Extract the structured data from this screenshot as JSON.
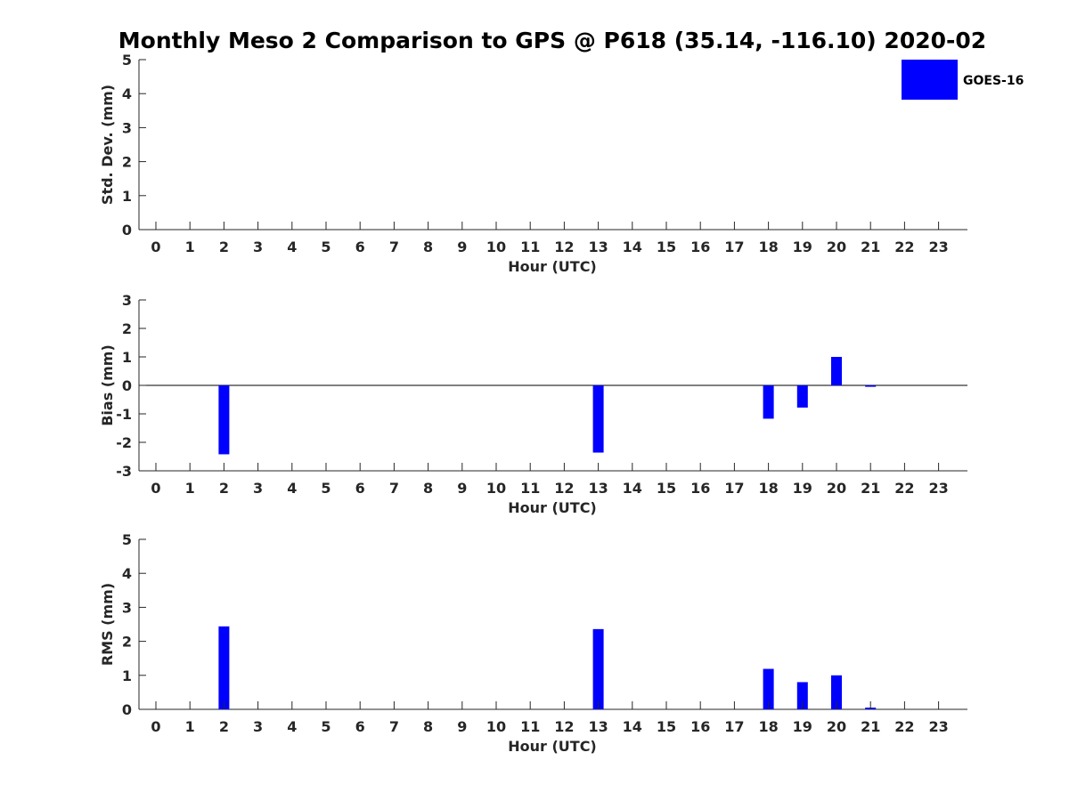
{
  "figure_title": "Monthly Meso 2 Comparison to GPS @ P618 (35.14, -116.10) 2020-02",
  "legend": {
    "label": "GOES-16",
    "color": "#0000ff"
  },
  "chart_data": [
    {
      "type": "bar",
      "xlabel": "Hour (UTC)",
      "ylabel": "Std. Dev. (mm)",
      "categories": [
        "0",
        "1",
        "2",
        "3",
        "4",
        "5",
        "6",
        "7",
        "8",
        "9",
        "10",
        "11",
        "12",
        "13",
        "14",
        "15",
        "16",
        "17",
        "18",
        "19",
        "20",
        "21",
        "22",
        "23"
      ],
      "ylim": [
        0,
        5
      ],
      "yticks": [
        "0",
        "1",
        "2",
        "3",
        "4",
        "5"
      ],
      "series": [
        {
          "name": "GOES-16",
          "color": "#0000ff",
          "values": [
            0,
            0,
            0,
            0,
            0,
            0,
            0,
            0,
            0,
            0,
            0,
            0,
            0,
            0,
            0,
            0,
            0,
            0,
            0,
            0,
            0,
            0,
            0,
            0
          ]
        }
      ],
      "zero_line": false,
      "grid": false
    },
    {
      "type": "bar",
      "xlabel": "Hour (UTC)",
      "ylabel": "Bias (mm)",
      "categories": [
        "0",
        "1",
        "2",
        "3",
        "4",
        "5",
        "6",
        "7",
        "8",
        "9",
        "10",
        "11",
        "12",
        "13",
        "14",
        "15",
        "16",
        "17",
        "18",
        "19",
        "20",
        "21",
        "22",
        "23"
      ],
      "ylim": [
        -3,
        3
      ],
      "yticks": [
        "-3",
        "-2",
        "-1",
        "0",
        "1",
        "2",
        "3"
      ],
      "series": [
        {
          "name": "GOES-16",
          "color": "#0000ff",
          "values": [
            0,
            0,
            -2.42,
            0,
            0,
            0,
            0,
            0,
            0,
            0,
            0,
            0,
            0,
            -2.36,
            0,
            0,
            0,
            0,
            -1.17,
            -0.78,
            1.0,
            -0.05,
            0,
            0
          ]
        }
      ],
      "zero_line": true,
      "grid": false
    },
    {
      "type": "bar",
      "xlabel": "Hour (UTC)",
      "ylabel": "RMS (mm)",
      "categories": [
        "0",
        "1",
        "2",
        "3",
        "4",
        "5",
        "6",
        "7",
        "8",
        "9",
        "10",
        "11",
        "12",
        "13",
        "14",
        "15",
        "16",
        "17",
        "18",
        "19",
        "20",
        "21",
        "22",
        "23"
      ],
      "ylim": [
        0,
        5
      ],
      "yticks": [
        "0",
        "1",
        "2",
        "3",
        "4",
        "5"
      ],
      "series": [
        {
          "name": "GOES-16",
          "color": "#0000ff",
          "values": [
            0,
            0,
            2.44,
            0,
            0,
            0,
            0,
            0,
            0,
            0,
            0,
            0,
            0,
            2.36,
            0,
            0,
            0,
            0,
            1.19,
            0.8,
            1.0,
            0.05,
            0,
            0
          ]
        }
      ],
      "zero_line": false,
      "grid": false
    }
  ]
}
